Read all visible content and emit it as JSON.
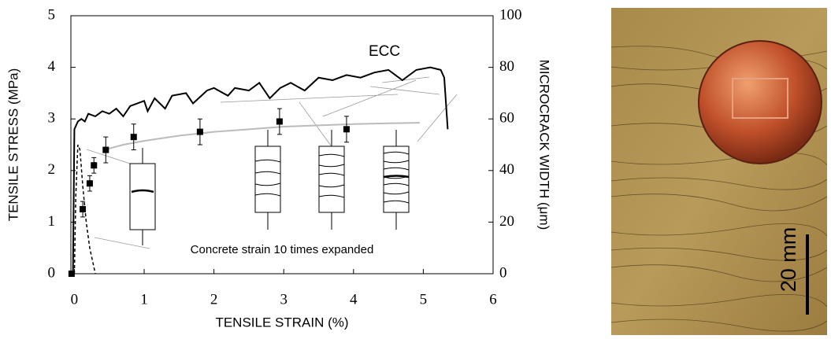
{
  "chart_data": {
    "type": "line",
    "xlabel": "TENSILE STRAIN (%)",
    "ylabel": "TENSILE STRESS (MPa)",
    "y2label": "MICROCRACK WIDTH (μm)",
    "annotations": [
      "Concrete strain 10 times expanded"
    ],
    "xlim": [
      -0.05,
      6
    ],
    "xticks": [
      0,
      1,
      2,
      3,
      4,
      5,
      6
    ],
    "ylim": [
      0,
      5
    ],
    "yticks": [
      0,
      1,
      2,
      3,
      4,
      5
    ],
    "y2lim": [
      0,
      100
    ],
    "y2ticks": [
      0,
      20,
      40,
      60,
      80,
      100
    ],
    "series": [
      {
        "name": "ECC",
        "color": "#000000",
        "style": "solid",
        "x": [
          -0.02,
          0.0,
          0.05,
          0.1,
          0.15,
          0.2,
          0.3,
          0.4,
          0.5,
          0.6,
          0.7,
          0.8,
          0.9,
          1.0,
          1.05,
          1.15,
          1.3,
          1.4,
          1.6,
          1.7,
          1.9,
          2.0,
          2.2,
          2.3,
          2.5,
          2.65,
          2.8,
          2.95,
          3.1,
          3.3,
          3.5,
          3.7,
          3.9,
          4.1,
          4.3,
          4.5,
          4.7,
          4.9,
          5.1,
          5.25,
          5.3,
          5.35
        ],
        "values": [
          0,
          2.8,
          2.95,
          3.0,
          2.95,
          3.1,
          3.05,
          3.15,
          3.1,
          3.2,
          3.05,
          3.25,
          3.3,
          3.35,
          3.15,
          3.4,
          3.2,
          3.45,
          3.5,
          3.3,
          3.55,
          3.6,
          3.45,
          3.6,
          3.55,
          3.7,
          3.4,
          3.6,
          3.7,
          3.55,
          3.8,
          3.75,
          3.85,
          3.8,
          3.9,
          3.95,
          3.75,
          3.95,
          4.0,
          3.95,
          3.8,
          2.8
        ]
      },
      {
        "color": "#000000",
        "style": "dashed",
        "x": [
          0.0,
          0.02,
          0.05,
          0.08,
          0.12,
          0.17,
          0.22,
          0.3
        ],
        "values": [
          0,
          1.5,
          2.5,
          2.4,
          1.7,
          1.0,
          0.5,
          0
        ]
      },
      {
        "color": "#bbbbbb",
        "style": "solid",
        "axis": "y2",
        "x": [
          0.43,
          0.7,
          1.0,
          1.5,
          2.0,
          2.5,
          3.0,
          3.5,
          4.0,
          4.5,
          4.95
        ],
        "values": [
          48,
          50,
          51.5,
          53.5,
          55,
          56,
          57,
          57.5,
          58,
          58.3,
          58.5
        ]
      },
      {
        "color": "#000000",
        "style": "markers",
        "axis": "y2",
        "x": [
          -0.04,
          0.12,
          0.22,
          0.28,
          0.45,
          0.85,
          1.8,
          2.94,
          3.9
        ],
        "values": [
          0,
          25,
          35,
          42,
          48,
          53,
          55,
          59,
          56
        ],
        "errors": [
          0,
          3,
          3,
          3,
          5,
          5,
          5,
          5,
          5
        ]
      }
    ]
  },
  "photo": {
    "scale_label": "20 mm"
  }
}
